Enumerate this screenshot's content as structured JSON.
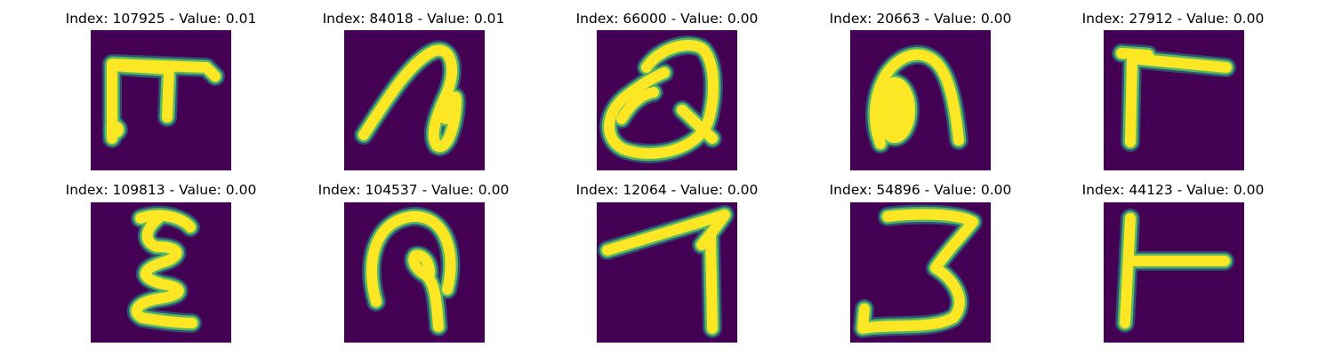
{
  "colors": {
    "background": "#440154",
    "stroke": "#fde725",
    "edge": "#21918c",
    "edge_mid": "#5ec962"
  },
  "panels": [
    {
      "title": "Index: 107925 - Value: 0.01",
      "glyph": "glyph-pi-like"
    },
    {
      "title": "Index: 84018 - Value: 0.01",
      "glyph": "glyph-loop-hook"
    },
    {
      "title": "Index: 66000 - Value: 0.00",
      "glyph": "glyph-q-like"
    },
    {
      "title": "Index: 20663 - Value: 0.00",
      "glyph": "glyph-arch"
    },
    {
      "title": "Index: 27912 - Value: 0.00",
      "glyph": "glyph-gamma-like"
    },
    {
      "title": "Index: 109813 - Value: 0.00",
      "glyph": "glyph-epsilon-like"
    },
    {
      "title": "Index: 104537 - Value: 0.00",
      "glyph": "glyph-hook-loop"
    },
    {
      "title": "Index: 12064 - Value: 0.00",
      "glyph": "glyph-seven-like"
    },
    {
      "title": "Index: 54896 - Value: 0.00",
      "glyph": "glyph-three-like"
    },
    {
      "title": "Index: 44123 - Value: 0.00",
      "glyph": "glyph-t-like"
    }
  ]
}
